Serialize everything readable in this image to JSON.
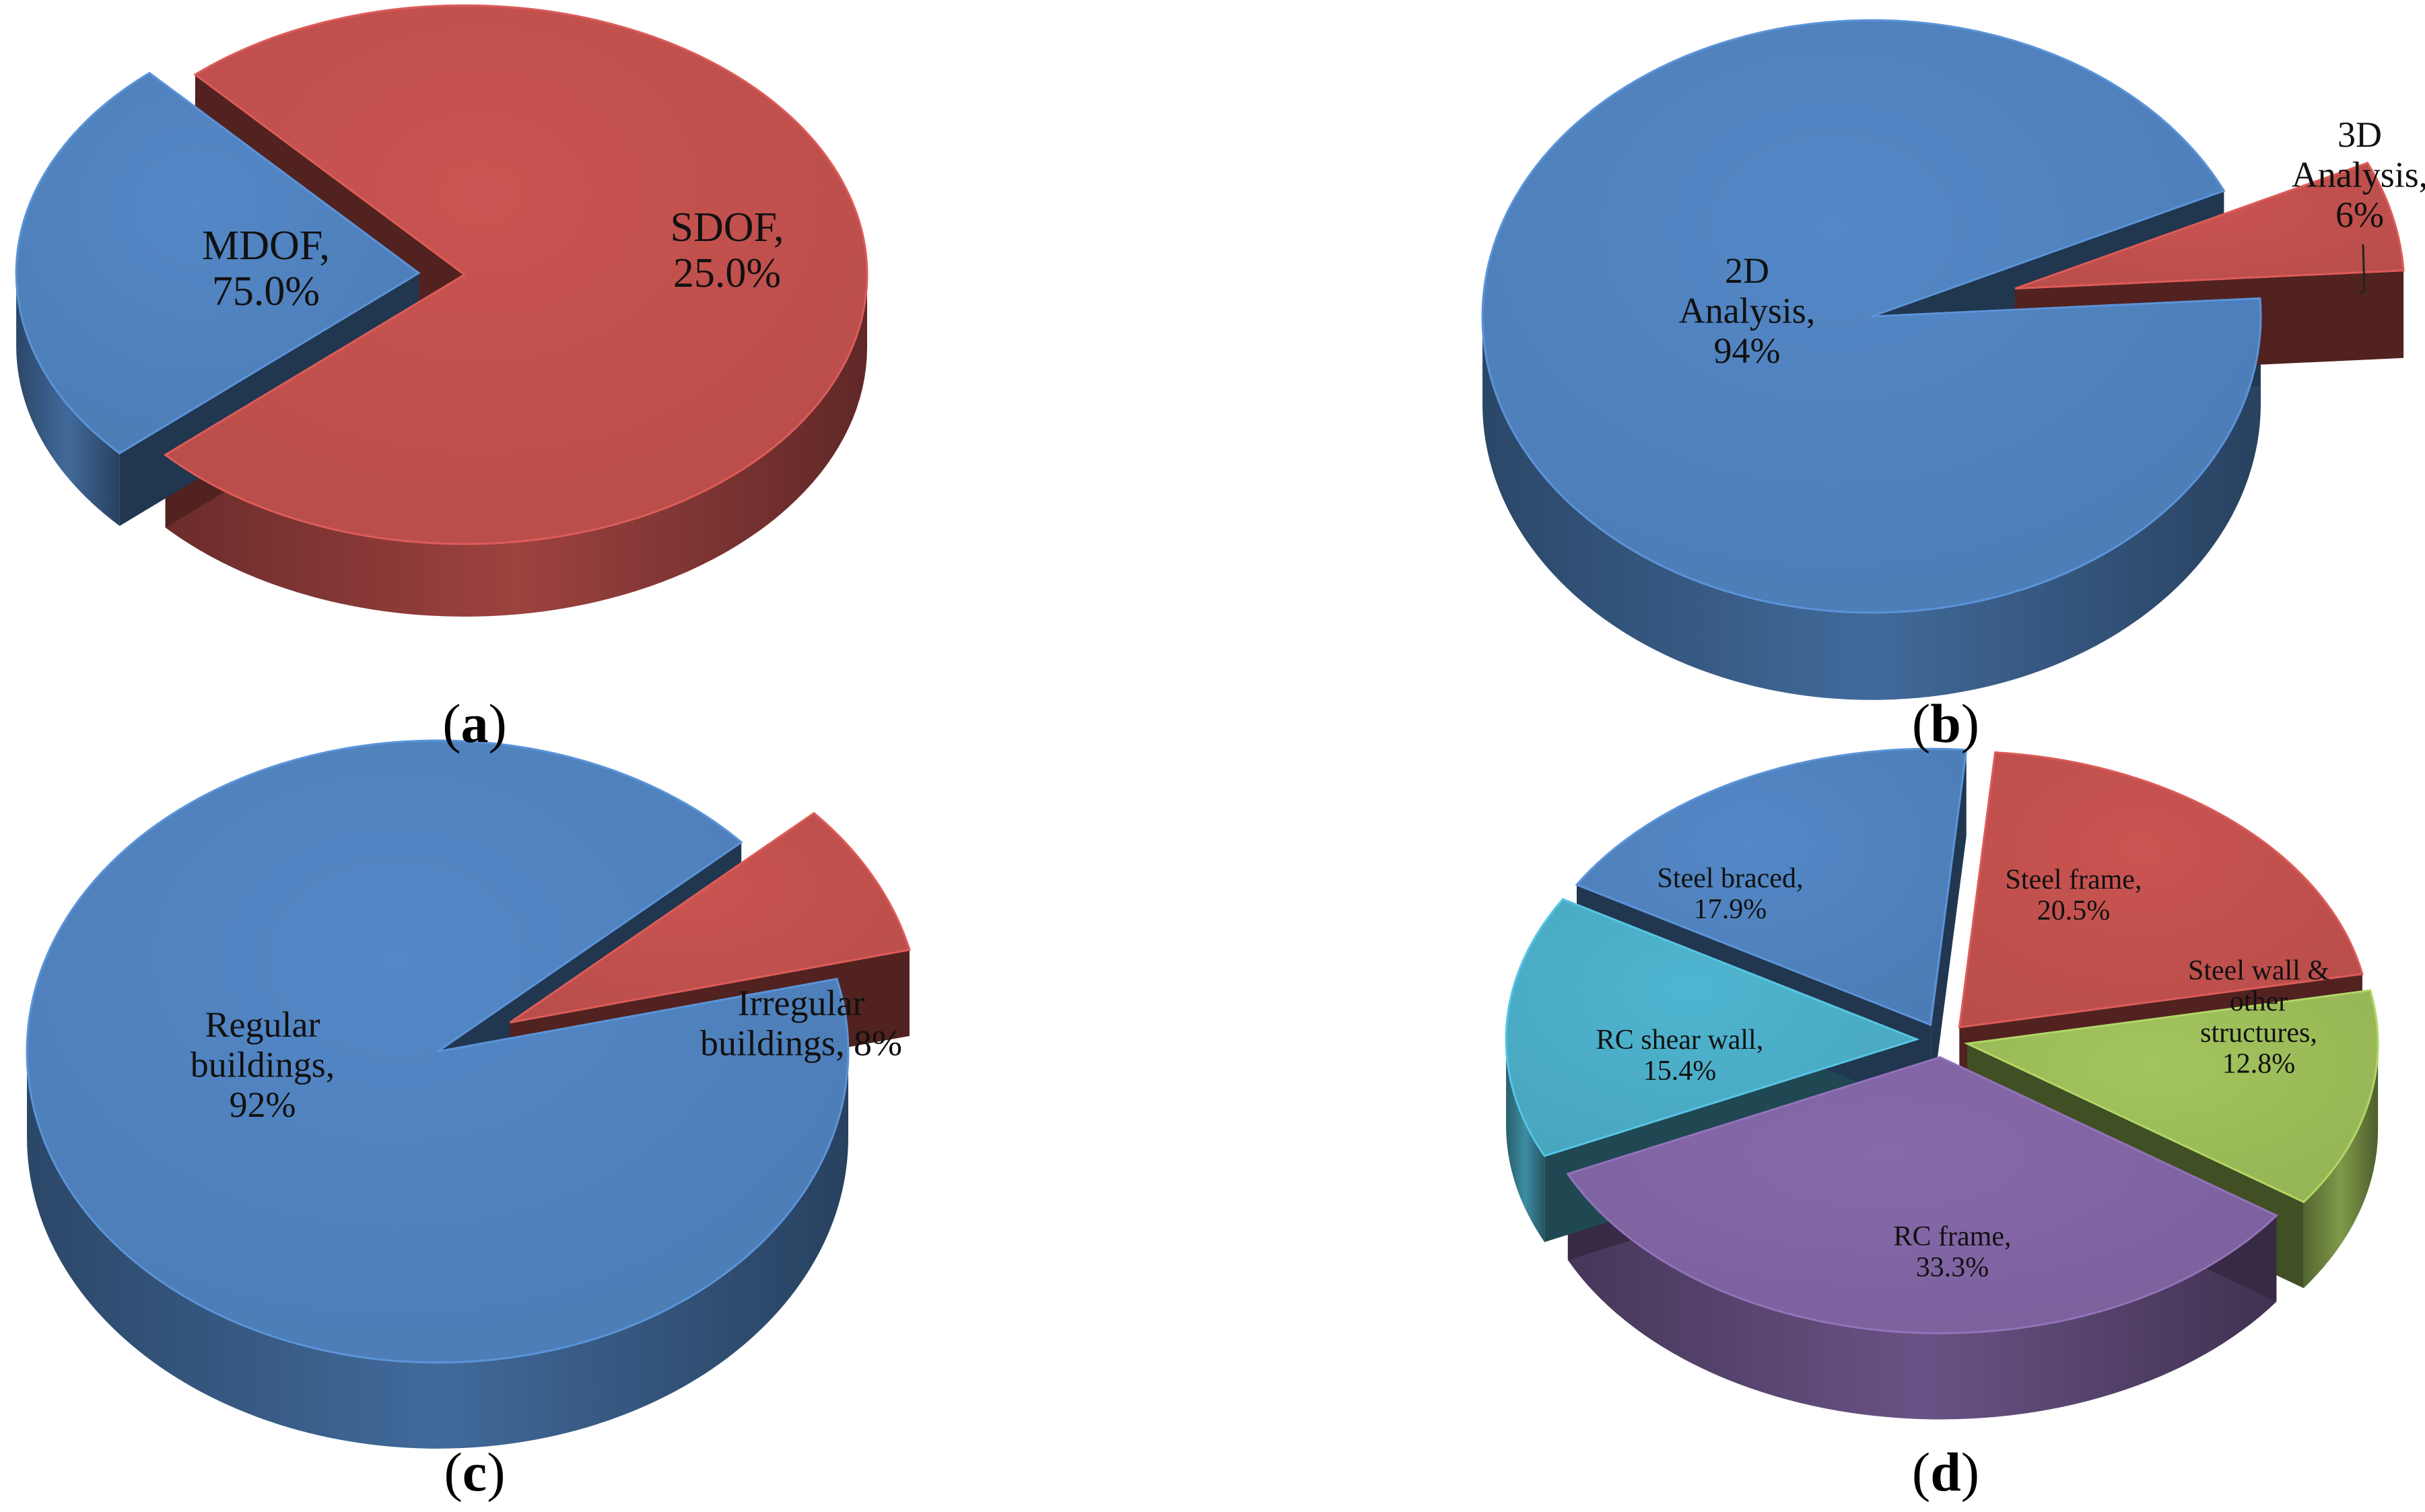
{
  "colors": {
    "blue": "#4F81BD",
    "red": "#C0504D",
    "green": "#9BBB59",
    "purple": "#8064A2",
    "teal": "#4BACC6"
  },
  "chart_data": [
    {
      "type": "pie",
      "panel": "(a)",
      "panel_letter": "a",
      "slices": [
        {
          "label": "MDOF,",
          "value_text": "75.0%",
          "value": 75.0,
          "color": "#C0504D"
        },
        {
          "label": "SDOF,",
          "value_text": "25.0%",
          "value": 25.0,
          "color": "#4F81BD",
          "exploded": true
        }
      ]
    },
    {
      "type": "pie",
      "panel": "(b)",
      "panel_letter": "b",
      "slices": [
        {
          "label": "2D Analysis,",
          "value_text": "94%",
          "value": 94,
          "color": "#4F81BD"
        },
        {
          "label": "3D Analysis,",
          "value_text": "6%",
          "value": 6,
          "color": "#C0504D",
          "exploded": true
        }
      ]
    },
    {
      "type": "pie",
      "panel": "(c)",
      "panel_letter": "c",
      "slices": [
        {
          "label": "Regular buildings,",
          "value_text": "92%",
          "value": 92,
          "color": "#4F81BD"
        },
        {
          "label": "Irregular buildings,",
          "value_text": "8%",
          "value": 8,
          "color": "#C0504D",
          "exploded": true
        }
      ]
    },
    {
      "type": "pie",
      "panel": "(d)",
      "panel_letter": "d",
      "slices": [
        {
          "label": "Steel frame,",
          "value_text": "20.5%",
          "value": 20.5,
          "color": "#C0504D"
        },
        {
          "label": "Steel wall & other structures,",
          "value_text": "12.8%",
          "value": 12.8,
          "color": "#9BBB59"
        },
        {
          "label": "RC frame,",
          "value_text": "33.3%",
          "value": 33.3,
          "color": "#8064A2"
        },
        {
          "label": "RC shear wall,",
          "value_text": "15.4%",
          "value": 15.4,
          "color": "#4BACC6"
        },
        {
          "label": "Steel braced,",
          "value_text": "17.9%",
          "value": 17.9,
          "color": "#4F81BD"
        }
      ]
    }
  ]
}
